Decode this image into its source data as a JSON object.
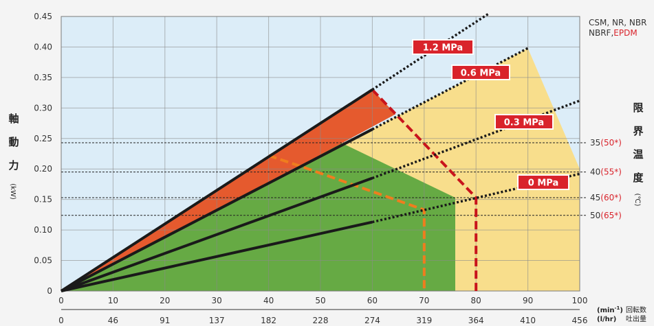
{
  "chart_data": {
    "type": "line",
    "x_primary": {
      "ticks": [
        "0",
        "10",
        "20",
        "30",
        "40",
        "50",
        "60",
        "70",
        "80",
        "90",
        "100"
      ],
      "unit": "(min-1)",
      "unit_base": "(min",
      "unit_sup": "-1",
      "unit_close": ")",
      "label": "回転数",
      "xlim": [
        0,
        100
      ]
    },
    "x_secondary": {
      "ticks": [
        "0",
        "46",
        "91",
        "137",
        "182",
        "228",
        "274",
        "319",
        "364",
        "410",
        "456"
      ],
      "unit": "(l/hr)",
      "label": "吐出量"
    },
    "y": {
      "ticks": [
        "0",
        "0.05",
        "0.10",
        "0.15",
        "0.20",
        "0.25",
        "0.30",
        "0.35",
        "0.40",
        "0.45"
      ],
      "ylim": [
        0,
        0.45
      ],
      "label_chars": [
        "軸",
        "動",
        "力"
      ],
      "unit": "(kW)"
    },
    "right_label_chars": [
      "限",
      "界",
      "温",
      "度"
    ],
    "right_unit": "(℃)",
    "materials": {
      "line1": "CSM, NR, NBR",
      "line2_prefix": "NBRF,",
      "line2_highlight": "EPDM"
    },
    "temperature_lines": [
      {
        "power": 0.243,
        "label": "35",
        "alt": "(50*)"
      },
      {
        "power": 0.195,
        "label": "40",
        "alt": "(55*)"
      },
      {
        "power": 0.153,
        "label": "45",
        "alt": "(60*)"
      },
      {
        "power": 0.124,
        "label": "50",
        "alt": "(65*)"
      }
    ],
    "series": [
      {
        "name": "1.2 MPa",
        "solid_end": 60,
        "solid_y": 0.33,
        "dotted_end": 82.5,
        "dotted_y": 0.455
      },
      {
        "name": "0.6 MPa",
        "solid_end": 60,
        "solid_y": 0.265,
        "dotted_end": 90,
        "dotted_y": 0.398
      },
      {
        "name": "0.3 MPa",
        "solid_end": 60,
        "solid_y": 0.185,
        "dotted_end": 100,
        "dotted_y": 0.312
      },
      {
        "name": "0 MPa",
        "solid_end": 60,
        "solid_y": 0.113,
        "dotted_end": 100,
        "dotted_y": 0.192
      }
    ],
    "regions": {
      "yellow": [
        [
          0,
          0
        ],
        [
          90,
          0.398
        ],
        [
          100,
          0.2
        ],
        [
          100,
          0
        ],
        [
          0,
          0
        ]
      ],
      "green": [
        [
          0,
          0
        ],
        [
          53.5,
          0.245
        ],
        [
          76,
          0.153
        ],
        [
          76,
          0
        ],
        [
          0,
          0
        ]
      ],
      "orange": [
        [
          0,
          0
        ],
        [
          40,
          0.222
        ],
        [
          46,
          0.205
        ],
        [
          0,
          0
        ]
      ],
      "red": [
        [
          0,
          0
        ],
        [
          60,
          0.33
        ],
        [
          64.5,
          0.29
        ],
        [
          46,
          0.205
        ],
        [
          0,
          0
        ]
      ]
    },
    "dashed_red": [
      [
        60,
        0.33
      ],
      [
        80,
        0.153
      ],
      [
        80,
        0
      ]
    ],
    "dashed_orange": [
      [
        40,
        0.222
      ],
      [
        46,
        0.205
      ],
      [
        70,
        0.133
      ],
      [
        70,
        0
      ]
    ],
    "colors": {
      "background": "#dcedf8",
      "yellow": "#f8de8c",
      "green": "#66aa44",
      "orange": "#f0a844",
      "red": "#e55a2e",
      "line": "#1a1a1a",
      "dash_red": "#c8141c",
      "dash_orange": "#ef7d1e",
      "label_red": "#d9232b"
    }
  }
}
